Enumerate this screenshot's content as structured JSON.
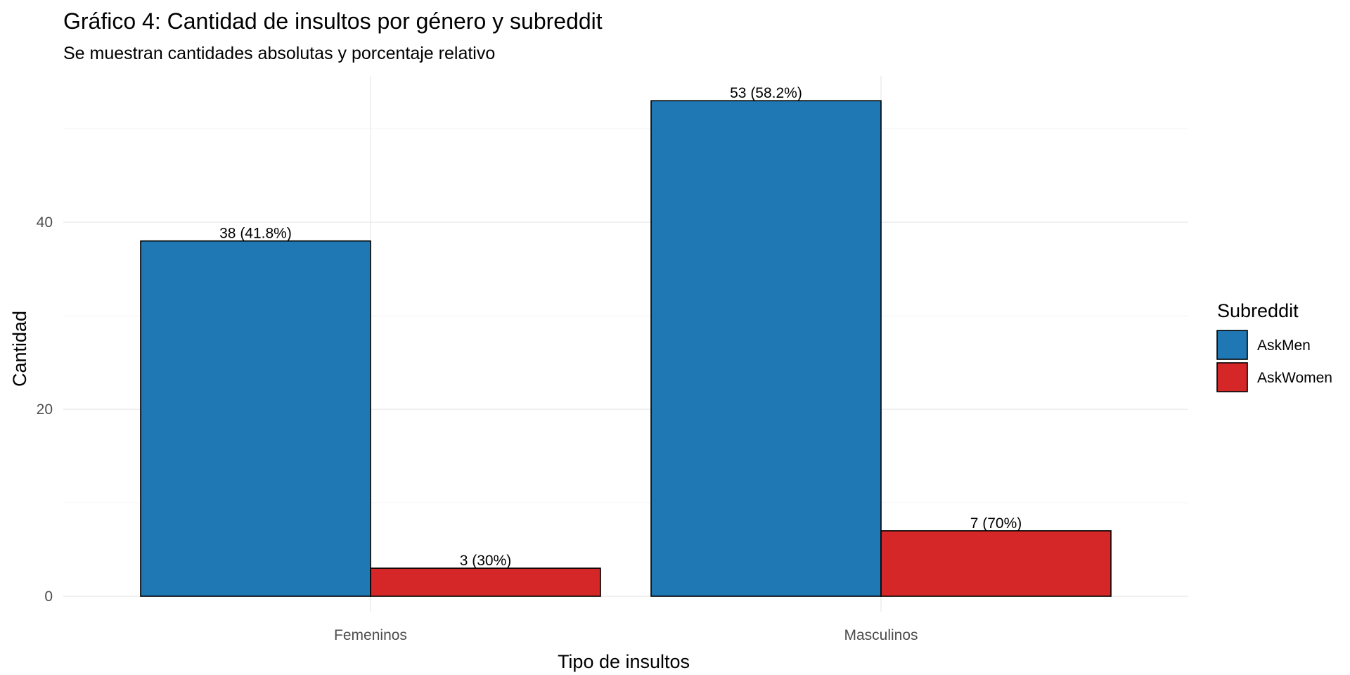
{
  "colors": {
    "AskMen": "#1f77b4",
    "AskWomen": "#d62728"
  },
  "chart_data": {
    "type": "bar",
    "title": "Gráfico 4: Cantidad de insultos por género y subreddit",
    "subtitle": "Se muestran cantidades absolutas y porcentaje relativo",
    "xlabel": "Tipo de insultos",
    "ylabel": "Cantidad",
    "categories": [
      "Femeninos",
      "Masculinos"
    ],
    "series": [
      {
        "name": "AskMen",
        "values": [
          38,
          53
        ],
        "labels": [
          "38 (41.8%)",
          "53 (58.2%)"
        ]
      },
      {
        "name": "AskWomen",
        "values": [
          3,
          7
        ],
        "labels": [
          "3 (30%)",
          "7 (70%)"
        ]
      }
    ],
    "ylim": [
      0,
      55.65
    ],
    "yticks": [
      0,
      20,
      40
    ],
    "grid": true,
    "legend": {
      "title": "Subreddit",
      "position": "right"
    }
  }
}
